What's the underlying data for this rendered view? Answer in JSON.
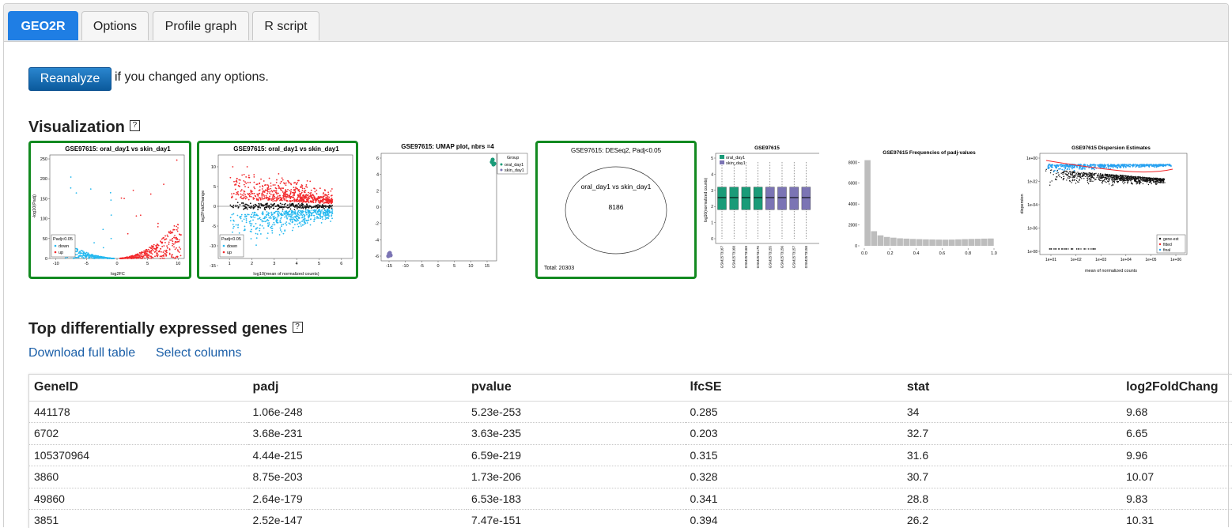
{
  "tabs": [
    {
      "label": "GEO2R",
      "active": true
    },
    {
      "label": "Options",
      "active": false
    },
    {
      "label": "Profile graph",
      "active": false
    },
    {
      "label": "R script",
      "active": false
    }
  ],
  "reanalyze": {
    "button_label": "Reanalyze",
    "note": "if you changed any options."
  },
  "visualization": {
    "heading": "Visualization",
    "help_label": "?",
    "volcano": {
      "title": "GSE97615: oral_day1 vs skin_day1",
      "xlabel": "log2FC",
      "ylabel": "-log10(Padj)",
      "xticks": [
        "-10",
        "-5",
        "0",
        "5",
        "10"
      ],
      "yticks": [
        "0",
        "50",
        "100",
        "150",
        "200",
        "250"
      ],
      "legend_title": "Padj<0.05",
      "legend": [
        "down",
        "up"
      ]
    },
    "md": {
      "title": "GSE97615: oral_day1 vs skin_day1",
      "xlabel": "log10(mean of normalized counts)",
      "ylabel": "log2FoldChange",
      "xticks": [
        "1",
        "2",
        "3",
        "4",
        "5",
        "6"
      ],
      "yticks": [
        "-15",
        "-10",
        "-5",
        "0",
        "5",
        "10"
      ],
      "legend_title": "Padj<0.05",
      "legend": [
        "down",
        "up"
      ]
    },
    "umap": {
      "title": "GSE97615: UMAP plot, nbrs =4",
      "xticks": [
        "-15",
        "-10",
        "-5",
        "0",
        "5",
        "10",
        "15"
      ],
      "yticks": [
        "-6",
        "-4",
        "-2",
        "0",
        "2",
        "4",
        "6"
      ],
      "legend_title": "Group",
      "legend": [
        "oral_day1",
        "skin_day1"
      ]
    },
    "venn": {
      "title": "GSE97615: DESeq2, Padj<0.05",
      "label": "oral_day1 vs skin_day1",
      "count": "8186",
      "total": "Total: 20303"
    },
    "boxplot": {
      "title": "GSE97615",
      "ylabel": "log10(normalized counts)",
      "yticks": [
        "0",
        "1",
        "2",
        "3",
        "4",
        "5"
      ],
      "legend": [
        "oral_day1",
        "skin_day1"
      ],
      "samples": [
        "GSM2573167",
        "GSM2573168",
        "GSM2573169",
        "GSM2573170",
        "GSM2573155",
        "GSM2573156",
        "GSM2573157",
        "GSM2573158"
      ]
    },
    "histogram": {
      "title": "GSE97615 Frequencies of padj-values",
      "xticks": [
        "0.0",
        "0.2",
        "0.4",
        "0.6",
        "0.8",
        "1.0"
      ],
      "yticks": [
        "0",
        "2000",
        "4000",
        "6000",
        "8000"
      ],
      "counts": [
        8200,
        1400,
        1000,
        850,
        780,
        720,
        690,
        660,
        640,
        620,
        610,
        600,
        590,
        600,
        620,
        640,
        660,
        670,
        690,
        700
      ]
    },
    "dispersion": {
      "title": "GSE97615 Dispersion Estimates",
      "xlabel": "mean of normalized counts",
      "ylabel": "dispersion",
      "xticks": [
        "1e+01",
        "1e+02",
        "1e+03",
        "1e+04",
        "1e+05",
        "1e+06"
      ],
      "yticks": [
        "1e+00",
        "1e-02",
        "1e-04",
        "1e-06",
        "1e-08"
      ],
      "legend": [
        "gene-est",
        "fitted",
        "final"
      ]
    }
  },
  "colors": {
    "up": "#f2292c",
    "down": "#24b8ef",
    "ns": "#111111",
    "group1": "#1a9b78",
    "group2": "#7b74b4",
    "hist": "#bdbdbd",
    "tab_active": "#1f7ee4",
    "link": "#1b5fa8",
    "selected_border": "#128a20"
  },
  "top_genes": {
    "heading": "Top differentially expressed genes",
    "help_label": "?",
    "download_label": "Download full table",
    "select_columns_label": "Select columns",
    "columns": [
      "GeneID",
      "padj",
      "pvalue",
      "lfcSE",
      "stat",
      "log2FoldChang"
    ],
    "rows": [
      [
        "441178",
        "1.06e-248",
        "5.23e-253",
        "0.285",
        "34",
        "9.68"
      ],
      [
        "6702",
        "3.68e-231",
        "3.63e-235",
        "0.203",
        "32.7",
        "6.65"
      ],
      [
        "105370964",
        "4.44e-215",
        "6.59e-219",
        "0.315",
        "31.6",
        "9.96"
      ],
      [
        "3860",
        "8.75e-203",
        "1.73e-206",
        "0.328",
        "30.7",
        "10.07"
      ],
      [
        "49860",
        "2.64e-179",
        "6.53e-183",
        "0.341",
        "28.8",
        "9.83"
      ],
      [
        "3851",
        "2.52e-147",
        "7.47e-151",
        "0.394",
        "26.2",
        "10.31"
      ]
    ]
  }
}
